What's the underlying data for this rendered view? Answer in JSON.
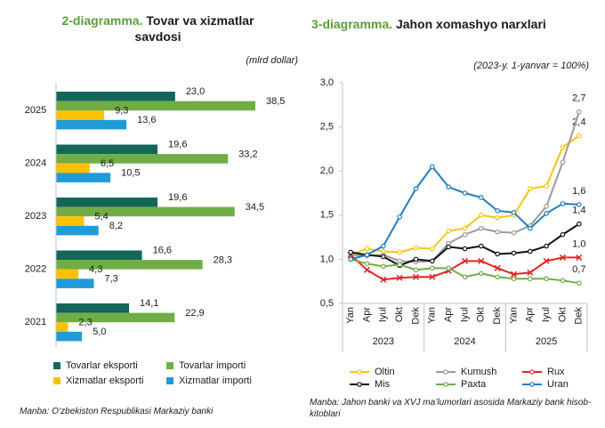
{
  "chart_data": [
    {
      "type": "hbar",
      "title_label": "2-diagramma.",
      "title": "Tovar va xizmatlar savdosi",
      "subtitle": "(mlrd dollar)",
      "categories": [
        "2025",
        "2024",
        "2023",
        "2022",
        "2021"
      ],
      "series": [
        {
          "name": "Tovarlar eksporti",
          "color": "#14665a",
          "values": [
            23.0,
            19.6,
            19.6,
            16.6,
            14.1
          ],
          "value_labels": [
            "23,0",
            "19,6",
            "19,6",
            "16,6",
            "14,1"
          ]
        },
        {
          "name": "Tovarlar importi",
          "color": "#70ad47",
          "values": [
            38.5,
            33.2,
            34.5,
            28.3,
            22.9
          ],
          "value_labels": [
            "38,5",
            "33,2",
            "34,5",
            "28,3",
            "22,9"
          ]
        },
        {
          "name": "Xizmatlar eksporti",
          "color": "#ffc000",
          "values": [
            9.3,
            6.5,
            5.4,
            4.3,
            2.3
          ],
          "value_labels": [
            "9,3",
            "6,5",
            "5,4",
            "4,3",
            "2,3"
          ]
        },
        {
          "name": "Xizmatlar importi",
          "color": "#1f9bd7",
          "values": [
            13.6,
            10.5,
            8.2,
            7.3,
            5.0
          ],
          "value_labels": [
            "13,6",
            "10,5",
            "8,2",
            "7,3",
            "5,0"
          ]
        }
      ],
      "source": "Manba: O‘zbekiston Respublikasi Markaziy banki"
    },
    {
      "type": "line",
      "title_label": "3-diagramma.",
      "title": "Jahon xomashyo narxlari",
      "subtitle": "(2023-y. 1-yanvar = 100%)",
      "categories": [
        "Yan",
        "Apr",
        "Iyul",
        "Okt",
        "Dek",
        "Yan",
        "Apr",
        "Iyul",
        "Okt",
        "Dek",
        "Yan",
        "Apr",
        "Iyul",
        "Okt",
        "Dek"
      ],
      "groups": [
        "2023",
        "2024",
        "2025"
      ],
      "ylim": [
        0.5,
        3.0
      ],
      "yticks": [
        {
          "value": 0.5,
          "label": "0,5"
        },
        {
          "value": 1.0,
          "label": "1,0"
        },
        {
          "value": 1.5,
          "label": "1,5"
        },
        {
          "value": 2.0,
          "label": "2,0"
        },
        {
          "value": 2.5,
          "label": "2,5"
        },
        {
          "value": 3.0,
          "label": "3,0"
        }
      ],
      "grid": false,
      "series": [
        {
          "name": "Oltin",
          "color": "#f5c518",
          "values": [
            1.05,
            1.12,
            1.09,
            1.08,
            1.13,
            1.12,
            1.32,
            1.35,
            1.5,
            1.47,
            1.5,
            1.8,
            1.83,
            2.27,
            2.4
          ],
          "end_label": "2,4"
        },
        {
          "name": "Kumush",
          "color": "#9a9a9a",
          "values": [
            1.05,
            1.04,
            1.05,
            0.98,
            0.97,
            0.98,
            1.18,
            1.28,
            1.35,
            1.31,
            1.3,
            1.38,
            1.6,
            2.1,
            2.67
          ],
          "end_label": "2,7"
        },
        {
          "name": "Rux",
          "color": "#e02424",
          "values": [
            1.05,
            0.88,
            0.77,
            0.79,
            0.8,
            0.8,
            0.87,
            0.98,
            0.98,
            0.9,
            0.83,
            0.85,
            0.98,
            1.02,
            1.02
          ],
          "end_label": "1,0"
        },
        {
          "name": "Mis",
          "color": "#111111",
          "values": [
            1.08,
            1.05,
            1.03,
            0.93,
            1.0,
            0.98,
            1.14,
            1.12,
            1.15,
            1.06,
            1.07,
            1.09,
            1.15,
            1.28,
            1.4
          ],
          "end_label": "1,4"
        },
        {
          "name": "Paxta",
          "color": "#70ad47",
          "values": [
            1.0,
            0.95,
            0.92,
            0.94,
            0.88,
            0.9,
            0.9,
            0.8,
            0.84,
            0.8,
            0.78,
            0.78,
            0.78,
            0.76,
            0.73
          ],
          "end_label": "0,7"
        },
        {
          "name": "Uran",
          "color": "#1f7ec1",
          "values": [
            1.0,
            1.05,
            1.15,
            1.48,
            1.8,
            2.05,
            1.82,
            1.75,
            1.7,
            1.55,
            1.53,
            1.35,
            1.52,
            1.63,
            1.62
          ],
          "end_label": "1,6"
        }
      ],
      "source": "Manba: Jahon banki va XVJ ma’lumorlari asosida Markaziy bank hisob-kitoblari"
    }
  ]
}
